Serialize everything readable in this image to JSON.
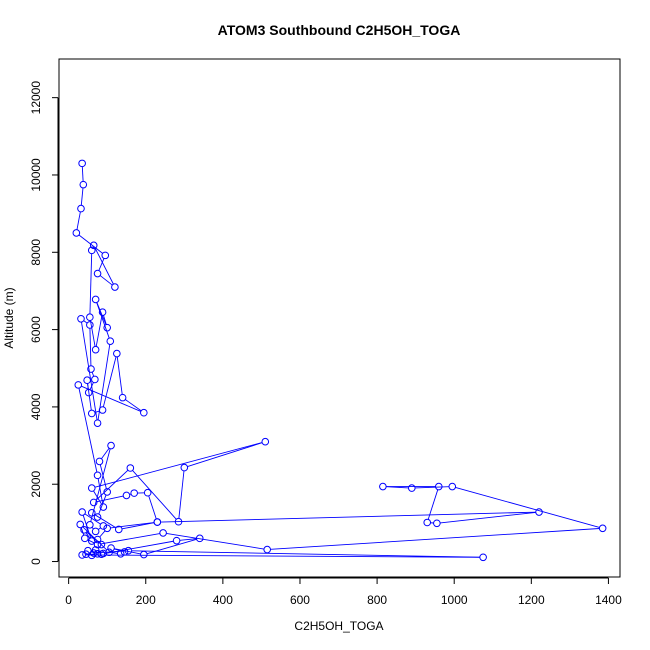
{
  "chart_data": {
    "type": "line",
    "title": "ATOM3 Southbound C2H5OH_TOGA",
    "xlabel": "C2H5OH_TOGA",
    "ylabel": "Altitude (m)",
    "xlim": [
      -25,
      1430
    ],
    "ylim": [
      -400,
      13000
    ],
    "xticks": [
      0,
      200,
      400,
      600,
      800,
      1000,
      1200,
      1400
    ],
    "yticks": [
      0,
      2000,
      4000,
      6000,
      8000,
      10000,
      12000
    ],
    "grid": false,
    "marker": "open-circle",
    "series": [
      {
        "color": "#0000ff",
        "x": [
          35,
          38,
          32,
          20,
          95,
          75,
          120,
          65,
          60,
          55,
          70,
          88,
          100,
          70,
          108,
          75,
          32,
          55,
          58,
          68,
          52,
          48,
          60,
          88,
          125,
          140,
          195,
          25,
          75,
          90,
          60,
          510,
          300,
          285,
          160,
          65,
          150,
          170,
          205,
          230,
          130,
          60,
          75,
          100,
          80,
          110,
          55,
          70,
          90,
          35,
          60,
          40,
          85,
          75,
          100,
          230,
          1220,
          955,
          930,
          960,
          815,
          890,
          995,
          1385,
          515,
          245,
          75,
          42,
          30,
          105,
          135,
          145,
          110,
          195,
          340,
          280,
          85,
          60,
          45,
          65,
          155,
          1075,
          35,
          75,
          90,
          50,
          70
        ],
        "y": [
          10300,
          9750,
          9130,
          8500,
          7920,
          7450,
          7100,
          8180,
          8050,
          6320,
          5480,
          6450,
          6050,
          6780,
          5700,
          3580,
          6280,
          6120,
          4980,
          4710,
          4370,
          4690,
          3830,
          3920,
          5380,
          4240,
          3850,
          4570,
          2230,
          1410,
          1900,
          3100,
          2430,
          1030,
          2420,
          1530,
          1710,
          1770,
          1780,
          1020,
          830,
          1260,
          1150,
          1800,
          2590,
          3000,
          950,
          780,
          920,
          1280,
          530,
          820,
          440,
          570,
          860,
          1020,
          1280,
          990,
          1010,
          1940,
          1940,
          1900,
          1940,
          860,
          310,
          740,
          440,
          600,
          960,
          240,
          200,
          250,
          350,
          180,
          600,
          540,
          190,
          160,
          190,
          220,
          280,
          110,
          170,
          200,
          210,
          280,
          300
        ]
      }
    ]
  }
}
